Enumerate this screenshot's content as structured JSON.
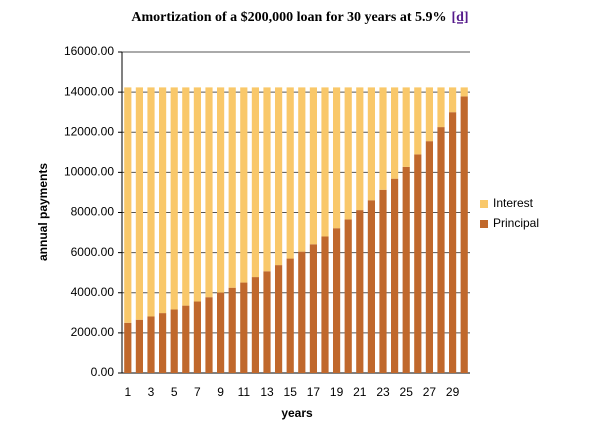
{
  "chart_data": {
    "type": "stacked-bar",
    "title": "Amortization of a $200,000 loan for 30 years at 5.9%",
    "link": "[d]",
    "x_label": "years",
    "y_label": "annual payments",
    "categories": [
      1,
      null,
      3,
      null,
      5,
      null,
      7,
      null,
      9,
      null,
      11,
      null,
      13,
      null,
      15,
      null,
      17,
      null,
      19,
      null,
      21,
      null,
      23,
      null,
      25,
      null,
      27,
      null,
      29,
      null
    ],
    "series": [
      {
        "name": "Principal",
        "color": "#c0682c",
        "values": [
          2503,
          2655,
          2816,
          2986,
          3167,
          3359,
          3563,
          3779,
          4008,
          4251,
          4508,
          4781,
          5071,
          5378,
          5704,
          6050,
          6416,
          6805,
          7217,
          7655,
          8119,
          8611,
          9133,
          9686,
          10273,
          10896,
          11556,
          12257,
          13000,
          13787
        ]
      },
      {
        "name": "Interest",
        "color": "#f9c86a",
        "values": [
          11733,
          11581,
          11420,
          11250,
          11069,
          10877,
          10673,
          10457,
          10228,
          9985,
          9728,
          9455,
          9165,
          8858,
          8532,
          8186,
          7820,
          7431,
          7019,
          6581,
          6117,
          5625,
          5103,
          4550,
          3963,
          3340,
          2680,
          1979,
          1236,
          449
        ]
      }
    ],
    "ylim": [
      0,
      16000
    ],
    "yticks": [
      {
        "value": 0,
        "label": "0.00"
      },
      {
        "value": 2000,
        "label": "2000.00"
      },
      {
        "value": 4000,
        "label": "4000.00"
      },
      {
        "value": 6000,
        "label": "6000.00"
      },
      {
        "value": 8000,
        "label": "8000.00"
      },
      {
        "value": 10000,
        "label": "10000.00"
      },
      {
        "value": 12000,
        "label": "12000.00"
      },
      {
        "value": 14000,
        "label": "14000.00"
      },
      {
        "value": 16000,
        "label": "16000.00"
      }
    ],
    "grid": true,
    "legend": "right"
  }
}
